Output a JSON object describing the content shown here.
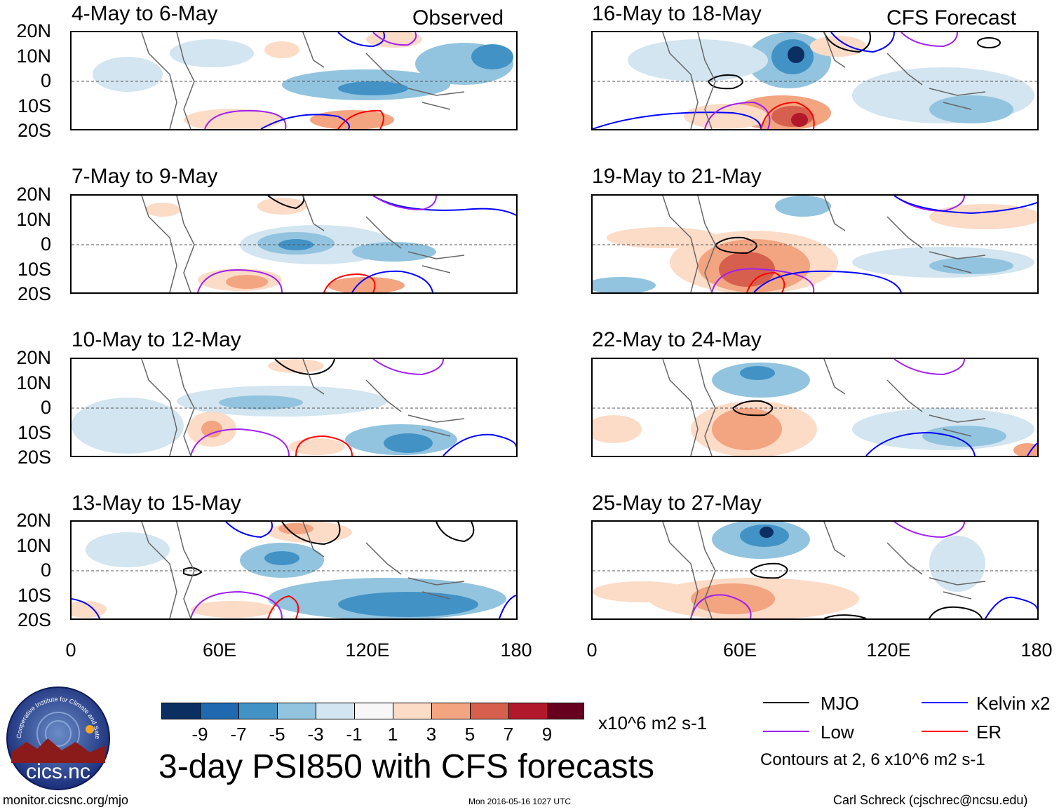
{
  "panels": {
    "left": [
      {
        "title": "4-May to 6-May",
        "tag": "Observed"
      },
      {
        "title": "7-May to 9-May",
        "tag": ""
      },
      {
        "title": "10-May to 12-May",
        "tag": ""
      },
      {
        "title": "13-May to 15-May",
        "tag": ""
      }
    ],
    "right": [
      {
        "title": "16-May to 18-May",
        "tag": "CFS Forecast"
      },
      {
        "title": "19-May to 21-May",
        "tag": ""
      },
      {
        "title": "22-May to 24-May",
        "tag": ""
      },
      {
        "title": "25-May to 27-May",
        "tag": ""
      }
    ]
  },
  "axes": {
    "lat_labels": [
      "20N",
      "10N",
      "0",
      "10S",
      "20S"
    ],
    "lon_labels": [
      "0",
      "60E",
      "120E",
      "180"
    ]
  },
  "colorbar": {
    "labels": [
      "-9",
      "-7",
      "-5",
      "-3",
      "-1",
      "1",
      "3",
      "5",
      "7",
      "9"
    ],
    "colors": [
      "#0c2f61",
      "#2068b0",
      "#4392c6",
      "#92c4df",
      "#d2e5f0",
      "#f7f7f7",
      "#fcdbc7",
      "#f3a481",
      "#d6604d",
      "#b2182b",
      "#67001f"
    ],
    "units": "x10^6 m2 s-1"
  },
  "legend": {
    "mjo": "MJO",
    "low": "Low",
    "kelvin": "Kelvin x2",
    "er": "ER",
    "contours": "Contours at 2, 6 x10^6 m2 s-1",
    "colors": {
      "mjo": "#000000",
      "low": "#a020f0",
      "kelvin": "#0000ff",
      "er": "#ff0000"
    }
  },
  "logo": {
    "text": "cics.nc",
    "arc_text": "Cooperative Institute for Climate and Satellites"
  },
  "main_title": "3-day PSI850 with CFS forecasts",
  "footer": {
    "url": "monitor.cicsnc.org/mjo",
    "timestamp": "Mon 2016-05-16 1027 UTC",
    "author": "Carl Schreck (cjschrec@ncsu.edu)"
  }
}
